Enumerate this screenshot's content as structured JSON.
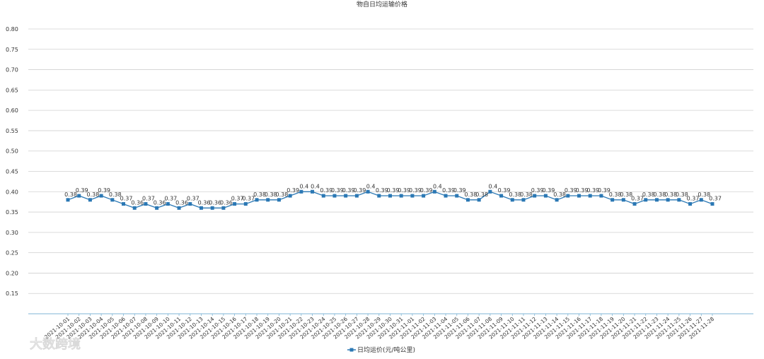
{
  "chart_data": {
    "type": "line",
    "title": "物自日均运输价格",
    "xlabel": "",
    "ylabel": "",
    "ylim": [
      0.1,
      0.8
    ],
    "yticks": [
      "0.80",
      "0.75",
      "0.70",
      "0.65",
      "0.60",
      "0.55",
      "0.50",
      "0.45",
      "0.40",
      "0.35",
      "0.30",
      "0.25",
      "0.20",
      "0.15"
    ],
    "grid": true,
    "legend_position": "bottom-center",
    "categories": [
      "2021-10-01",
      "2021-10-02",
      "2021-10-03",
      "2021-10-04",
      "2021-10-05",
      "2021-10-06",
      "2021-10-07",
      "2021-10-08",
      "2021-10-09",
      "2021-10-10",
      "2021-10-11",
      "2021-10-12",
      "2021-10-13",
      "2021-10-14",
      "2021-10-15",
      "2021-10-16",
      "2021-10-17",
      "2021-10-18",
      "2021-10-19",
      "2021-10-20",
      "2021-10-21",
      "2021-10-22",
      "2021-10-23",
      "2021-10-24",
      "2021-10-25",
      "2021-10-26",
      "2021-10-27",
      "2021-10-28",
      "2021-10-29",
      "2021-10-30",
      "2021-10-31",
      "2021-11-01",
      "2021-11-02",
      "2021-11-03",
      "2021-11-04",
      "2021-11-05",
      "2021-11-06",
      "2021-11-07",
      "2021-11-08",
      "2021-11-09",
      "2021-11-10",
      "2021-11-11",
      "2021-11-12",
      "2021-11-13",
      "2021-11-14",
      "2021-11-15",
      "2021-11-16",
      "2021-11-17",
      "2021-11-18",
      "2021-11-19",
      "2021-11-20",
      "2021-11-21",
      "2021-11-22",
      "2021-11-23",
      "2021-11-24",
      "2021-11-25",
      "2021-11-26",
      "2021-11-27",
      "2021-11-28"
    ],
    "series": [
      {
        "name": "日均运价(元/吨公里)",
        "color": "#2b78b4",
        "values": [
          0.38,
          0.39,
          0.38,
          0.39,
          0.38,
          0.37,
          0.36,
          0.37,
          0.36,
          0.37,
          0.36,
          0.37,
          0.36,
          0.36,
          0.36,
          0.37,
          0.37,
          0.38,
          0.38,
          0.38,
          0.39,
          0.4,
          0.4,
          0.39,
          0.39,
          0.39,
          0.39,
          0.4,
          0.39,
          0.39,
          0.39,
          0.39,
          0.39,
          0.4,
          0.39,
          0.39,
          0.38,
          0.38,
          0.4,
          0.39,
          0.38,
          0.38,
          0.39,
          0.39,
          0.38,
          0.39,
          0.39,
          0.39,
          0.39,
          0.38,
          0.38,
          0.37,
          0.38,
          0.38,
          0.38,
          0.38,
          0.37,
          0.38,
          0.37
        ]
      }
    ]
  },
  "watermark": {
    "text": "大数跨境"
  },
  "colors": {
    "grid": "#d0d0d0",
    "axis": "#7fb6d6",
    "text": "#333333",
    "line": "#2b78b4"
  }
}
